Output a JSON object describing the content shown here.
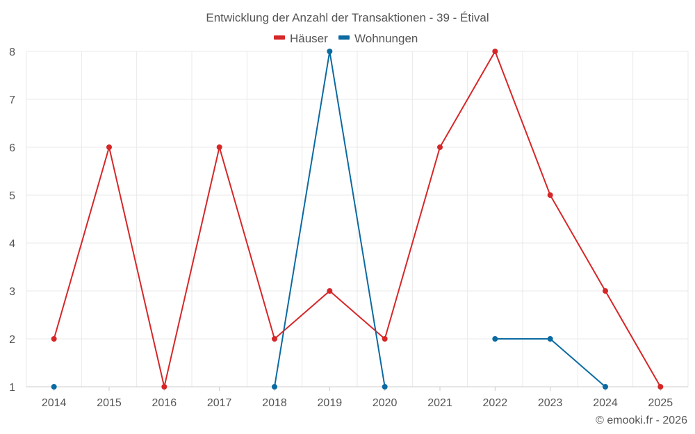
{
  "chart_data": {
    "type": "line",
    "title": "Entwicklung der Anzahl der Transaktionen - 39 - Étival",
    "categories": [
      "2014",
      "2015",
      "2016",
      "2017",
      "2018",
      "2019",
      "2020",
      "2021",
      "2022",
      "2023",
      "2024",
      "2025"
    ],
    "ylim": [
      1,
      8
    ],
    "yticks": [
      1,
      2,
      3,
      4,
      5,
      6,
      7,
      8
    ],
    "grid": true,
    "legend": "top-center",
    "series": [
      {
        "name": "Häuser",
        "color": "#d62728",
        "values": [
          2,
          6,
          1,
          6,
          2,
          3,
          2,
          6,
          8,
          5,
          3,
          1
        ]
      },
      {
        "name": "Wohnungen",
        "color": "#0b6aa2",
        "values": [
          1,
          null,
          null,
          null,
          1,
          8,
          1,
          null,
          2,
          2,
          1,
          null
        ]
      }
    ]
  },
  "credit": "© emooki.fr - 2026"
}
